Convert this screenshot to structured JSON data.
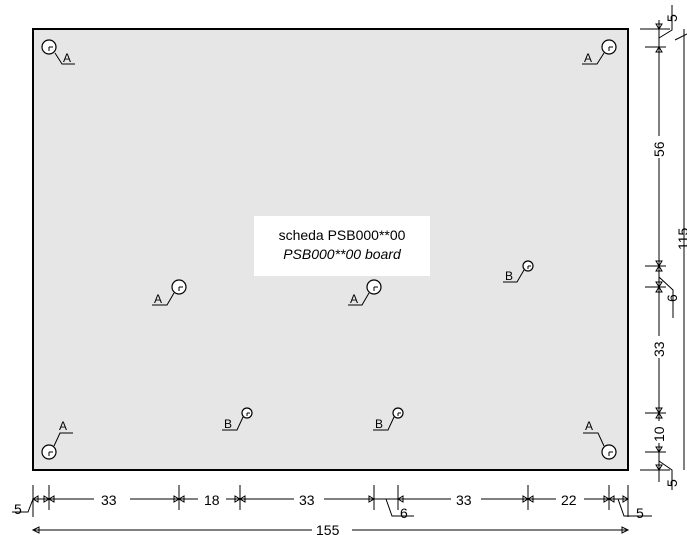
{
  "board": {
    "title_line1": "scheda PSB000**00",
    "title_line2": "PSB000**00 board"
  },
  "hole_labels": {
    "A": "A",
    "B": "B"
  },
  "dimensions": {
    "bottom": [
      "5",
      "33",
      "18",
      "33",
      "6",
      "33",
      "22",
      "5"
    ],
    "total_width": "155",
    "right": [
      "5",
      "56",
      "6",
      "33",
      "10",
      "5"
    ],
    "total_height": "115"
  }
}
